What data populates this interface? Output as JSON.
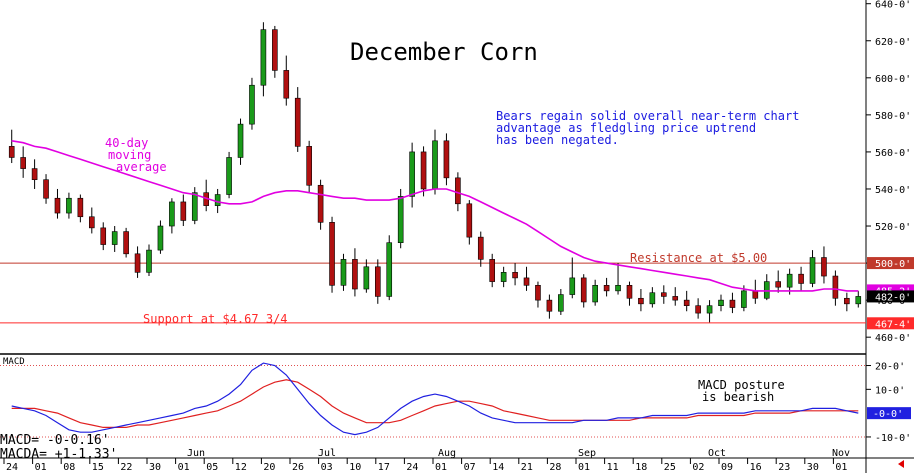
{
  "chart_data": {
    "type": "candlestick",
    "title": "December Corn",
    "commentary": [
      "Bears regain solid overall near-term chart",
      "advantage as fledgling price uptrend",
      "has been negated."
    ],
    "ma_label": [
      "40-day",
      "moving",
      "average"
    ],
    "resistance": {
      "label": "Resistance at $5.00",
      "value": 500.0
    },
    "support": {
      "label": "Support at $4.67 3/4",
      "value": 467.75
    },
    "price_axis": {
      "ylim": [
        452,
        642
      ],
      "ticks": [
        "640-0'",
        "620-0'",
        "600-0'",
        "580-0'",
        "560-0'",
        "540-0'",
        "520-0'",
        "500-0'",
        "480-0'",
        "460-0'"
      ],
      "tick_values": [
        640,
        620,
        600,
        580,
        560,
        540,
        520,
        500,
        480,
        460
      ],
      "flags": [
        {
          "text": "500-0'",
          "value": 500,
          "color": "#c0392b"
        },
        {
          "text": "485-2'",
          "value": 485.25,
          "color": "#e100e1"
        },
        {
          "text": "482-0'",
          "value": 482,
          "color": "#000000"
        },
        {
          "text": "467-4'",
          "value": 467.5,
          "color": "#ff2a2a"
        }
      ]
    },
    "candles": [
      {
        "o": 563,
        "h": 572,
        "l": 554,
        "c": 557
      },
      {
        "o": 557,
        "h": 563,
        "l": 546,
        "c": 551
      },
      {
        "o": 551,
        "h": 556,
        "l": 540,
        "c": 545
      },
      {
        "o": 545,
        "h": 548,
        "l": 532,
        "c": 535
      },
      {
        "o": 535,
        "h": 540,
        "l": 524,
        "c": 527
      },
      {
        "o": 527,
        "h": 538,
        "l": 524,
        "c": 535
      },
      {
        "o": 535,
        "h": 537,
        "l": 522,
        "c": 525
      },
      {
        "o": 525,
        "h": 530,
        "l": 516,
        "c": 519
      },
      {
        "o": 519,
        "h": 522,
        "l": 507,
        "c": 510
      },
      {
        "o": 510,
        "h": 520,
        "l": 506,
        "c": 517
      },
      {
        "o": 517,
        "h": 519,
        "l": 503,
        "c": 505
      },
      {
        "o": 505,
        "h": 509,
        "l": 492,
        "c": 495
      },
      {
        "o": 495,
        "h": 510,
        "l": 493,
        "c": 507
      },
      {
        "o": 507,
        "h": 523,
        "l": 505,
        "c": 520
      },
      {
        "o": 520,
        "h": 535,
        "l": 516,
        "c": 533
      },
      {
        "o": 533,
        "h": 537,
        "l": 520,
        "c": 523
      },
      {
        "o": 523,
        "h": 541,
        "l": 521,
        "c": 538
      },
      {
        "o": 538,
        "h": 545,
        "l": 528,
        "c": 531
      },
      {
        "o": 531,
        "h": 540,
        "l": 527,
        "c": 537
      },
      {
        "o": 537,
        "h": 560,
        "l": 535,
        "c": 557
      },
      {
        "o": 557,
        "h": 578,
        "l": 553,
        "c": 575
      },
      {
        "o": 575,
        "h": 600,
        "l": 572,
        "c": 596
      },
      {
        "o": 596,
        "h": 630,
        "l": 590,
        "c": 626
      },
      {
        "o": 626,
        "h": 628,
        "l": 600,
        "c": 604
      },
      {
        "o": 604,
        "h": 612,
        "l": 585,
        "c": 589
      },
      {
        "o": 589,
        "h": 595,
        "l": 560,
        "c": 563
      },
      {
        "o": 563,
        "h": 566,
        "l": 538,
        "c": 542
      },
      {
        "o": 542,
        "h": 545,
        "l": 518,
        "c": 522
      },
      {
        "o": 522,
        "h": 525,
        "l": 484,
        "c": 488
      },
      {
        "o": 488,
        "h": 505,
        "l": 485,
        "c": 502
      },
      {
        "o": 502,
        "h": 508,
        "l": 482,
        "c": 486
      },
      {
        "o": 486,
        "h": 502,
        "l": 484,
        "c": 498
      },
      {
        "o": 498,
        "h": 502,
        "l": 478,
        "c": 482
      },
      {
        "o": 482,
        "h": 515,
        "l": 480,
        "c": 511
      },
      {
        "o": 511,
        "h": 540,
        "l": 508,
        "c": 536
      },
      {
        "o": 536,
        "h": 565,
        "l": 530,
        "c": 560
      },
      {
        "o": 560,
        "h": 563,
        "l": 536,
        "c": 540
      },
      {
        "o": 540,
        "h": 572,
        "l": 537,
        "c": 566
      },
      {
        "o": 566,
        "h": 570,
        "l": 542,
        "c": 546
      },
      {
        "o": 546,
        "h": 549,
        "l": 528,
        "c": 532
      },
      {
        "o": 532,
        "h": 534,
        "l": 510,
        "c": 514
      },
      {
        "o": 514,
        "h": 517,
        "l": 498,
        "c": 502
      },
      {
        "o": 502,
        "h": 505,
        "l": 487,
        "c": 490
      },
      {
        "o": 490,
        "h": 498,
        "l": 487,
        "c": 495
      },
      {
        "o": 495,
        "h": 500,
        "l": 488,
        "c": 492
      },
      {
        "o": 492,
        "h": 498,
        "l": 485,
        "c": 488
      },
      {
        "o": 488,
        "h": 490,
        "l": 476,
        "c": 480
      },
      {
        "o": 480,
        "h": 483,
        "l": 470,
        "c": 474
      },
      {
        "o": 474,
        "h": 486,
        "l": 472,
        "c": 483
      },
      {
        "o": 483,
        "h": 503,
        "l": 481,
        "c": 492
      },
      {
        "o": 492,
        "h": 494,
        "l": 476,
        "c": 479
      },
      {
        "o": 479,
        "h": 491,
        "l": 477,
        "c": 488
      },
      {
        "o": 488,
        "h": 492,
        "l": 482,
        "c": 485
      },
      {
        "o": 485,
        "h": 500,
        "l": 483,
        "c": 488
      },
      {
        "o": 488,
        "h": 490,
        "l": 477,
        "c": 481
      },
      {
        "o": 481,
        "h": 486,
        "l": 474,
        "c": 478
      },
      {
        "o": 478,
        "h": 487,
        "l": 476,
        "c": 484
      },
      {
        "o": 484,
        "h": 488,
        "l": 478,
        "c": 482
      },
      {
        "o": 482,
        "h": 487,
        "l": 477,
        "c": 480
      },
      {
        "o": 480,
        "h": 485,
        "l": 474,
        "c": 477
      },
      {
        "o": 477,
        "h": 481,
        "l": 470,
        "c": 473
      },
      {
        "o": 473,
        "h": 480,
        "l": 468,
        "c": 477
      },
      {
        "o": 477,
        "h": 483,
        "l": 474,
        "c": 480
      },
      {
        "o": 480,
        "h": 484,
        "l": 473,
        "c": 476
      },
      {
        "o": 476,
        "h": 488,
        "l": 474,
        "c": 485
      },
      {
        "o": 485,
        "h": 491,
        "l": 478,
        "c": 481
      },
      {
        "o": 481,
        "h": 494,
        "l": 480,
        "c": 490
      },
      {
        "o": 490,
        "h": 496,
        "l": 484,
        "c": 487
      },
      {
        "o": 487,
        "h": 497,
        "l": 483,
        "c": 494
      },
      {
        "o": 494,
        "h": 498,
        "l": 485,
        "c": 489
      },
      {
        "o": 489,
        "h": 507,
        "l": 487,
        "c": 503
      },
      {
        "o": 503,
        "h": 509,
        "l": 489,
        "c": 493
      },
      {
        "o": 493,
        "h": 496,
        "l": 477,
        "c": 481
      },
      {
        "o": 481,
        "h": 484,
        "l": 474,
        "c": 478
      },
      {
        "o": 478,
        "h": 485,
        "l": 476,
        "c": 482
      }
    ],
    "moving_average": [
      566,
      565,
      563,
      562,
      560,
      558,
      556,
      554,
      552,
      550,
      548,
      546,
      544,
      542,
      540,
      538,
      537,
      535,
      533,
      532,
      532,
      533,
      536,
      538,
      539,
      539,
      538,
      537,
      536,
      535,
      535,
      534,
      534,
      534,
      535,
      537,
      539,
      540,
      540,
      538,
      536,
      533,
      530,
      527,
      524,
      521,
      517,
      513,
      509,
      506,
      503,
      501,
      500,
      499,
      498,
      497,
      496,
      495,
      494,
      493,
      492,
      491,
      489,
      487,
      486,
      485,
      485,
      485,
      485,
      485,
      485,
      486,
      486,
      485,
      485
    ],
    "x_axis": {
      "day_labels": [
        "24",
        "01",
        "08",
        "15",
        "22",
        "30",
        "01",
        "05",
        "12",
        "20",
        "26",
        "03",
        "10",
        "17",
        "24",
        "01",
        "07",
        "14",
        "21",
        "28",
        "01",
        "11",
        "18",
        "25",
        "02",
        "09",
        "16",
        "23",
        "30",
        "01"
      ],
      "month_labels": [
        "Jun",
        "Jul",
        "Aug",
        "Sep",
        "Oct",
        "Nov"
      ]
    },
    "macd": {
      "label": "MACD",
      "posture": [
        "MACD posture",
        "is bearish"
      ],
      "legend": [
        "MACD=  -0-0.16'",
        "MACDA= +1-1.33'"
      ],
      "ylim": [
        -18,
        24
      ],
      "ticks": [
        "20-0'",
        "10-0'",
        "-10-0'"
      ],
      "tick_values": [
        20,
        10,
        -10
      ],
      "flag": {
        "text": "-0-0'",
        "value": 0
      },
      "macd_values": [
        3,
        2,
        1,
        -1,
        -4,
        -7,
        -8,
        -8,
        -7,
        -6,
        -5,
        -4,
        -3,
        -2,
        -1,
        0,
        2,
        3,
        5,
        8,
        12,
        18,
        21,
        20,
        16,
        10,
        4,
        -1,
        -5,
        -8,
        -9,
        -8,
        -6,
        -2,
        2,
        5,
        7,
        8,
        7,
        5,
        3,
        0,
        -2,
        -3,
        -4,
        -4,
        -4,
        -4,
        -4,
        -4,
        -3,
        -3,
        -3,
        -2,
        -2,
        -2,
        -1,
        -1,
        -1,
        -1,
        0,
        0,
        0,
        0,
        0,
        1,
        1,
        1,
        1,
        1,
        2,
        2,
        2,
        1,
        0
      ],
      "signal_values": [
        2,
        2,
        2,
        1,
        0,
        -2,
        -4,
        -5,
        -6,
        -6,
        -6,
        -5,
        -5,
        -4,
        -3,
        -2,
        -1,
        0,
        1,
        3,
        5,
        8,
        11,
        13,
        14,
        13,
        10,
        7,
        3,
        0,
        -2,
        -4,
        -4,
        -4,
        -3,
        -1,
        1,
        3,
        4,
        5,
        5,
        4,
        3,
        1,
        0,
        -1,
        -2,
        -3,
        -3,
        -3,
        -3,
        -3,
        -3,
        -3,
        -3,
        -2,
        -2,
        -2,
        -2,
        -2,
        -1,
        -1,
        -1,
        -1,
        -1,
        0,
        0,
        0,
        0,
        1,
        1,
        1,
        1,
        1,
        1
      ]
    }
  }
}
